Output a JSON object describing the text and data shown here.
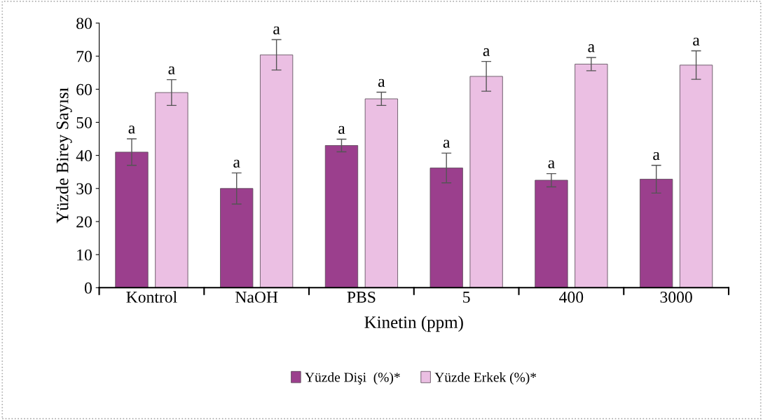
{
  "chart_data": {
    "type": "bar",
    "xlabel": "Kinetin (ppm)",
    "ylabel": "Yüzde Birey Sayısı",
    "categories": [
      "Kontrol",
      "NaOH",
      "PBS",
      "5",
      "400",
      "3000"
    ],
    "series": [
      {
        "name": "Yüzde Dişi  (%)*",
        "color": "#9b3f8d",
        "values": [
          41.0,
          30.0,
          43.0,
          36.2,
          32.5,
          32.8
        ],
        "errors": [
          4.0,
          4.7,
          1.9,
          4.5,
          2.0,
          4.2
        ],
        "value_labels": [
          "a",
          "a",
          "a",
          "a",
          "a",
          "a"
        ]
      },
      {
        "name": "Yüzde Erkek (%)*",
        "color": "#ebbfe3",
        "values": [
          59.0,
          70.4,
          57.1,
          63.9,
          67.6,
          67.3
        ],
        "errors": [
          3.9,
          4.6,
          2.0,
          4.5,
          2.0,
          4.3
        ],
        "value_labels": [
          "a",
          "a",
          "a",
          "a",
          "a",
          "a"
        ]
      }
    ],
    "ylim": [
      0,
      80
    ],
    "yticks": [
      0,
      10,
      20,
      30,
      40,
      50,
      60,
      70,
      80
    ],
    "grid": false,
    "legend": "bottom"
  }
}
